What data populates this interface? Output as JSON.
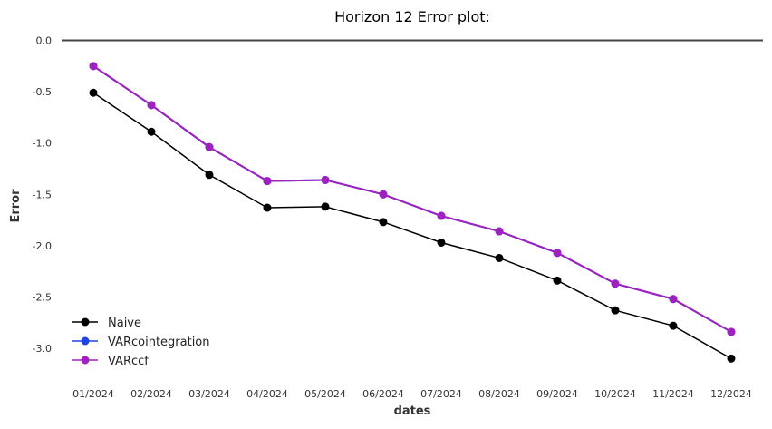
{
  "chart_data": {
    "type": "line",
    "title": "Horizon 12 Error plot:",
    "xlabel": "dates",
    "ylabel": "Error",
    "categories": [
      "01/2024",
      "02/2024",
      "03/2024",
      "04/2024",
      "05/2024",
      "06/2024",
      "07/2024",
      "08/2024",
      "09/2024",
      "10/2024",
      "11/2024",
      "12/2024"
    ],
    "y_ticks": [
      "0.0",
      "-0.5",
      "-1.0",
      "-1.5",
      "-2.0",
      "-2.5",
      "-3.0"
    ],
    "y_tick_values": [
      0.0,
      -0.5,
      -1.0,
      -1.5,
      -2.0,
      -2.5,
      -3.0
    ],
    "ylim": [
      -3.3,
      0.04
    ],
    "reference_line": 0.0,
    "grid": false,
    "legend_position": "bottom-left",
    "series": [
      {
        "name": "Naive",
        "color": "#000000",
        "values": [
          -0.51,
          -0.89,
          -1.31,
          -1.63,
          -1.62,
          -1.77,
          -1.97,
          -2.12,
          -2.34,
          -2.63,
          -2.78,
          -3.1
        ]
      },
      {
        "name": "VARcointegration",
        "color": "#1f44e0",
        "values": [
          -0.25,
          -0.63,
          -1.04,
          -1.37,
          -1.36,
          -1.5,
          -1.71,
          -1.86,
          -2.07,
          -2.37,
          -2.52,
          -2.84
        ]
      },
      {
        "name": "VARccf",
        "color": "#a020c0",
        "values": [
          -0.25,
          -0.63,
          -1.04,
          -1.37,
          -1.36,
          -1.5,
          -1.71,
          -1.86,
          -2.07,
          -2.37,
          -2.52,
          -2.84
        ]
      }
    ]
  }
}
